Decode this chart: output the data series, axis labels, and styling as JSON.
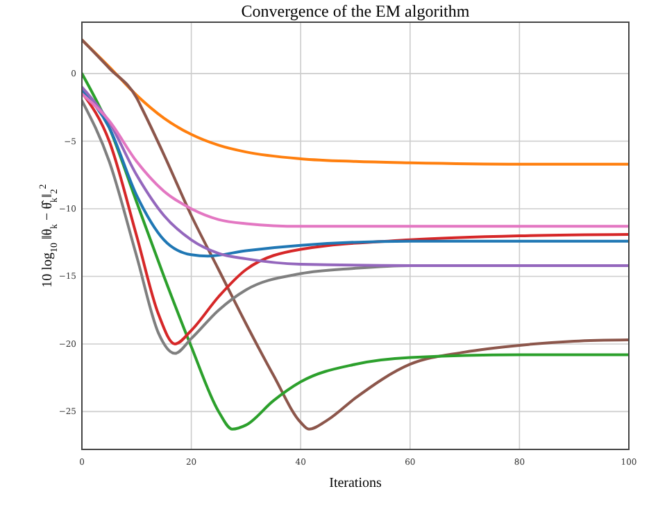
{
  "chart_data": {
    "type": "line",
    "title": "Convergence of the EM algorithm",
    "xlabel": "Iterations",
    "ylabel": "10 log$_{10}$ ‖θ$_{k}$ − θ̂$_{k}$‖$_{2}$$^{2}$",
    "xlim": [
      0,
      100
    ],
    "ylim": [
      -27.8,
      3.8
    ],
    "xticks": [
      0,
      20,
      40,
      60,
      80,
      100
    ],
    "yticks": [
      -25,
      -20,
      -15,
      -10,
      -5,
      0
    ],
    "grid": true,
    "marker": "none",
    "line_style": "solid",
    "series": [
      {
        "color": "#ff7f0e",
        "x": [
          0,
          5,
          10,
          15,
          20,
          25,
          30,
          40,
          50,
          60,
          80,
          100
        ],
        "values": [
          2.5,
          0.5,
          -1.6,
          -3.3,
          -4.5,
          -5.3,
          -5.8,
          -6.3,
          -6.5,
          -6.6,
          -6.7,
          -6.7
        ]
      },
      {
        "color": "#8c564b",
        "x": [
          0,
          5,
          10,
          11,
          15,
          20,
          25,
          30,
          35,
          40,
          41.5,
          45,
          50,
          60,
          70,
          80,
          90,
          100
        ],
        "values": [
          2.5,
          0.4,
          -1.8,
          -2.6,
          -6,
          -10.5,
          -14.5,
          -18.5,
          -22.3,
          -25.8,
          -26.3,
          -25.6,
          -24,
          -21.5,
          -20.6,
          -20.1,
          -19.8,
          -19.7
        ]
      },
      {
        "color": "#2ca02c",
        "x": [
          0,
          5,
          10,
          15,
          20,
          25,
          27.5,
          30,
          35,
          40,
          50,
          60,
          80,
          100
        ],
        "values": [
          0,
          -4,
          -9.5,
          -15,
          -20.2,
          -25,
          -26.3,
          -26,
          -24.2,
          -22.8,
          -21.5,
          -21,
          -20.8,
          -20.8
        ]
      },
      {
        "color": "#d62728",
        "x": [
          0,
          5,
          10,
          14,
          17,
          20,
          25,
          30,
          40,
          60,
          80,
          100
        ],
        "values": [
          -1.4,
          -5,
          -12,
          -17.8,
          -20,
          -19,
          -16.5,
          -14.5,
          -13,
          -12.3,
          -12,
          -11.9
        ]
      },
      {
        "color": "#7f7f7f",
        "x": [
          0,
          5,
          10,
          14,
          17,
          20,
          25,
          30,
          40,
          50,
          60,
          100
        ],
        "values": [
          -2,
          -6.5,
          -13.5,
          -19.2,
          -20.7,
          -19.6,
          -17.5,
          -16,
          -14.8,
          -14.4,
          -14.2,
          -14.2
        ]
      },
      {
        "color": "#1f77b4",
        "x": [
          0,
          5,
          10,
          15,
          20,
          23,
          30,
          40,
          60,
          100
        ],
        "values": [
          -1.2,
          -4,
          -9,
          -12.3,
          -13.4,
          -13.5,
          -13.1,
          -12.7,
          -12.4,
          -12.4
        ]
      },
      {
        "color": "#9467bd",
        "x": [
          0,
          5,
          10,
          15,
          20,
          25,
          30,
          40,
          60,
          100
        ],
        "values": [
          -1,
          -3.6,
          -7.5,
          -10.5,
          -12.3,
          -13.3,
          -13.7,
          -14.1,
          -14.2,
          -14.2
        ]
      },
      {
        "color": "#e377c2",
        "x": [
          0,
          5,
          10,
          15,
          20,
          25,
          30,
          40,
          60,
          100
        ],
        "values": [
          -1.5,
          -3.5,
          -6.5,
          -8.7,
          -10,
          -10.8,
          -11.1,
          -11.3,
          -11.3,
          -11.3
        ]
      }
    ]
  }
}
